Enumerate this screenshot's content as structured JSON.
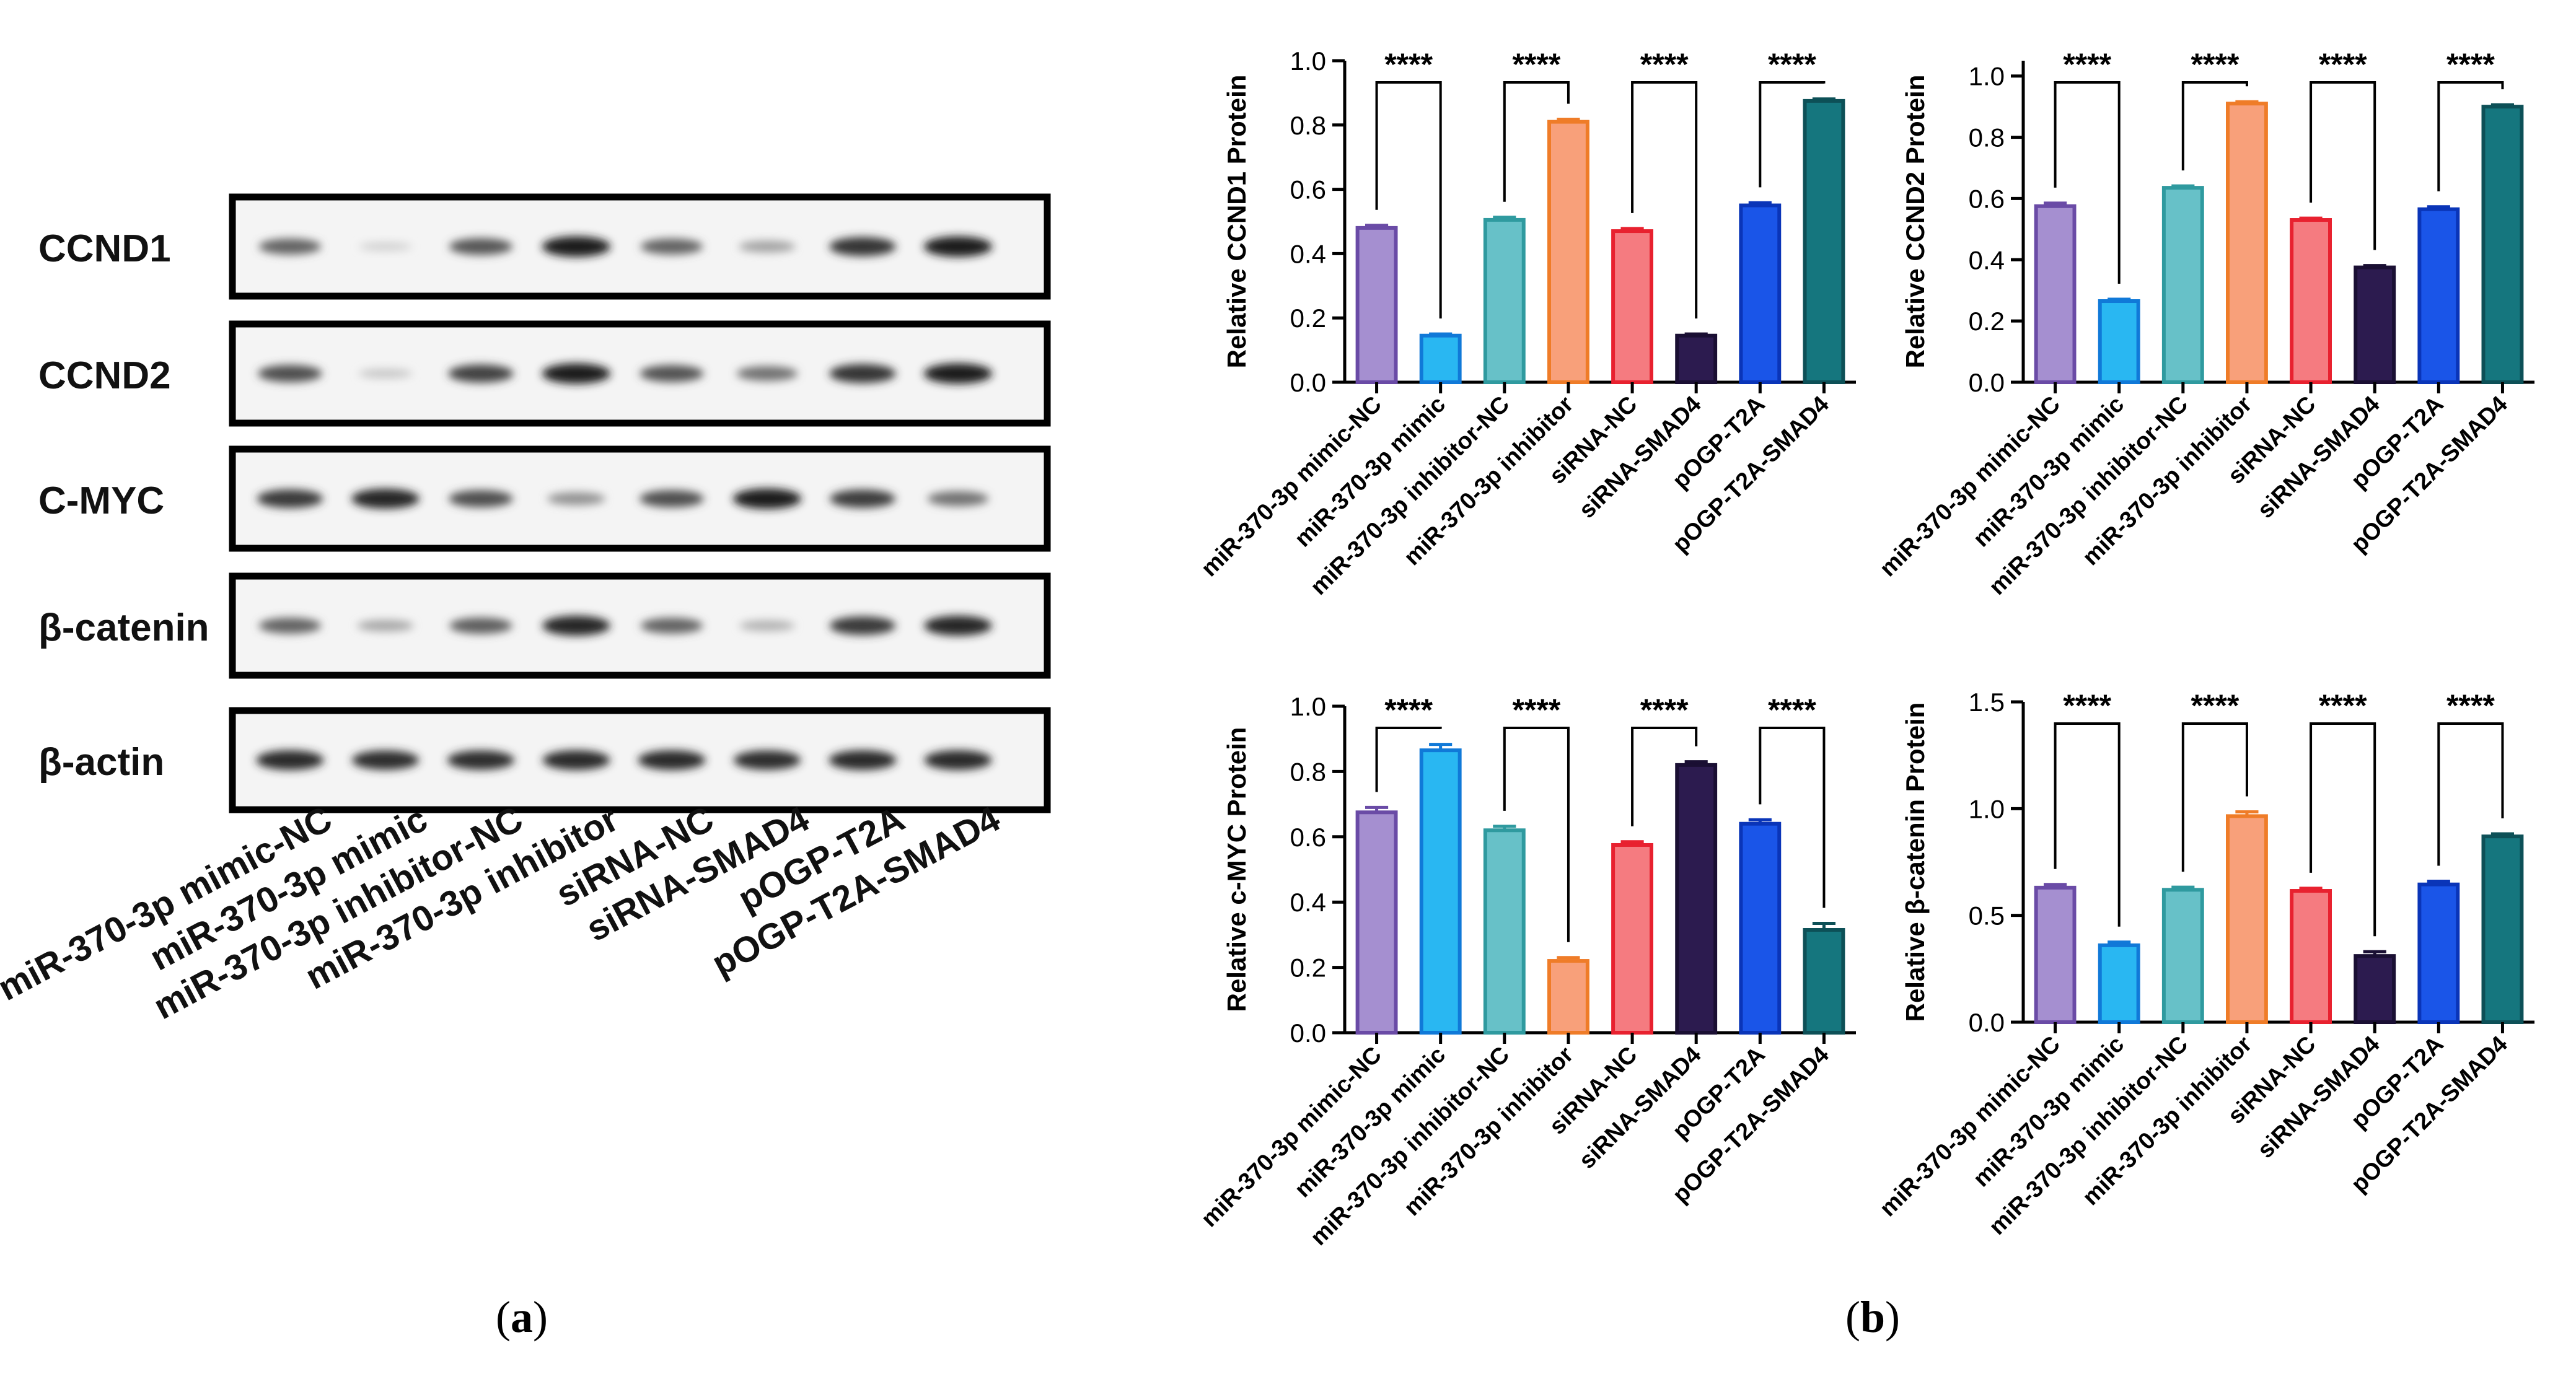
{
  "panel_labels": {
    "a": "a",
    "b": "b"
  },
  "western_blot": {
    "proteins": [
      "CCND1",
      "CCND2",
      "C-MYC",
      "β-catenin",
      "β-actin"
    ],
    "lanes": [
      "miR-370-3p mimic-NC",
      "miR-370-3p mimic",
      "miR-370-3p inhibitor-NC",
      "miR-370-3p inhibitor",
      "siRNA-NC",
      "siRNA-SMAD4",
      "pOGP-T2A",
      "pOGP-T2A-SMAD4"
    ],
    "band_intensity": [
      [
        0.62,
        0.1,
        0.68,
        0.95,
        0.62,
        0.32,
        0.85,
        0.95
      ],
      [
        0.72,
        0.15,
        0.78,
        0.95,
        0.7,
        0.55,
        0.85,
        0.95
      ],
      [
        0.82,
        0.92,
        0.72,
        0.4,
        0.72,
        0.95,
        0.8,
        0.55
      ],
      [
        0.62,
        0.3,
        0.65,
        0.92,
        0.62,
        0.25,
        0.82,
        0.92
      ],
      [
        0.9,
        0.88,
        0.88,
        0.9,
        0.9,
        0.88,
        0.9,
        0.9
      ]
    ]
  },
  "colors": {
    "fills": [
      "#a58fd0",
      "#29b7f2",
      "#67c1c8",
      "#f8a07a",
      "#f57b80",
      "#2c1b4f",
      "#1a55e8",
      "#15767e"
    ],
    "edges": [
      "#6a4ba6",
      "#1079d8",
      "#2f9a9f",
      "#ef7c28",
      "#e8212f",
      "#1a0f33",
      "#0a35b8",
      "#0d5057"
    ]
  },
  "chart_data": [
    {
      "type": "bar",
      "title": "",
      "ylabel": "Relative CCND1 Protein",
      "xlabel": "",
      "categories": [
        "miR-370-3p mimic-NC",
        "miR-370-3p mimic",
        "miR-370-3p inhibitor-NC",
        "miR-370-3p inhibitor",
        "siRNA-NC",
        "siRNA-SMAD4",
        "pOGP-T2A",
        "pOGP-T2A-SMAD4"
      ],
      "values": [
        0.48,
        0.145,
        0.505,
        0.81,
        0.47,
        0.145,
        0.55,
        0.875
      ],
      "errors": [
        0.008,
        0.005,
        0.008,
        0.008,
        0.008,
        0.005,
        0.008,
        0.006
      ],
      "ylim": [
        0,
        1.0
      ],
      "yticks": [
        "0.0",
        "0.2",
        "0.4",
        "0.6",
        "0.8",
        "1.0"
      ],
      "significance": [
        {
          "pair": [
            0,
            1
          ],
          "label": "****"
        },
        {
          "pair": [
            2,
            3
          ],
          "label": "****"
        },
        {
          "pair": [
            4,
            5
          ],
          "label": "****"
        },
        {
          "pair": [
            6,
            7
          ],
          "label": "****"
        }
      ]
    },
    {
      "type": "bar",
      "title": "",
      "ylabel": "Relative CCND2 Protein",
      "xlabel": "",
      "categories": [
        "miR-370-3p mimic-NC",
        "miR-370-3p mimic",
        "miR-370-3p inhibitor-NC",
        "miR-370-3p inhibitor",
        "siRNA-NC",
        "siRNA-SMAD4",
        "pOGP-T2A",
        "pOGP-T2A-SMAD4"
      ],
      "values": [
        0.575,
        0.265,
        0.635,
        0.91,
        0.53,
        0.375,
        0.565,
        0.9
      ],
      "errors": [
        0.01,
        0.006,
        0.006,
        0.006,
        0.006,
        0.006,
        0.008,
        0.006
      ],
      "ylim": [
        0,
        1.05
      ],
      "yticks": [
        "0.0",
        "0.2",
        "0.4",
        "0.6",
        "0.8",
        "1.0"
      ],
      "significance": [
        {
          "pair": [
            0,
            1
          ],
          "label": "****"
        },
        {
          "pair": [
            2,
            3
          ],
          "label": "****"
        },
        {
          "pair": [
            4,
            5
          ],
          "label": "****"
        },
        {
          "pair": [
            6,
            7
          ],
          "label": "****"
        }
      ]
    },
    {
      "type": "bar",
      "title": "",
      "ylabel": "Relative c-MYC Protein",
      "xlabel": "",
      "categories": [
        "miR-370-3p mimic-NC",
        "miR-370-3p mimic",
        "miR-370-3p inhibitor-NC",
        "miR-370-3p inhibitor",
        "siRNA-NC",
        "siRNA-SMAD4",
        "pOGP-T2A",
        "pOGP-T2A-SMAD4"
      ],
      "values": [
        0.675,
        0.865,
        0.62,
        0.22,
        0.575,
        0.82,
        0.64,
        0.315
      ],
      "errors": [
        0.015,
        0.018,
        0.012,
        0.01,
        0.01,
        0.01,
        0.012,
        0.02
      ],
      "ylim": [
        0,
        1.0
      ],
      "yticks": [
        "0.0",
        "0.2",
        "0.4",
        "0.6",
        "0.8",
        "1.0"
      ],
      "significance": [
        {
          "pair": [
            0,
            1
          ],
          "label": "****"
        },
        {
          "pair": [
            2,
            3
          ],
          "label": "****"
        },
        {
          "pair": [
            4,
            5
          ],
          "label": "****"
        },
        {
          "pair": [
            6,
            7
          ],
          "label": "****"
        }
      ]
    },
    {
      "type": "bar",
      "title": "",
      "ylabel": "Relative β-catenin Protein",
      "xlabel": "",
      "categories": [
        "miR-370-3p mimic-NC",
        "miR-370-3p mimic",
        "miR-370-3p inhibitor-NC",
        "miR-370-3p inhibitor",
        "siRNA-NC",
        "siRNA-SMAD4",
        "pOGP-T2A",
        "pOGP-T2A-SMAD4"
      ],
      "values": [
        0.63,
        0.36,
        0.62,
        0.965,
        0.615,
        0.31,
        0.645,
        0.87
      ],
      "errors": [
        0.015,
        0.015,
        0.012,
        0.02,
        0.012,
        0.02,
        0.015,
        0.012
      ],
      "ylim": [
        0,
        1.5
      ],
      "yticks": [
        "0.0",
        "0.5",
        "1.0",
        "1.5"
      ],
      "significance": [
        {
          "pair": [
            0,
            1
          ],
          "label": "****"
        },
        {
          "pair": [
            2,
            3
          ],
          "label": "****"
        },
        {
          "pair": [
            4,
            5
          ],
          "label": "****"
        },
        {
          "pair": [
            6,
            7
          ],
          "label": "****"
        }
      ]
    }
  ]
}
